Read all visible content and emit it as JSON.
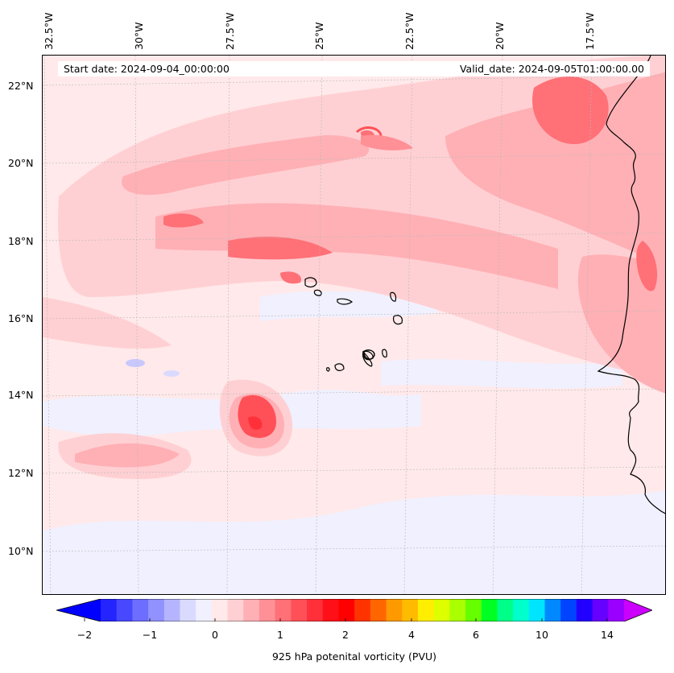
{
  "map": {
    "start_date": "Start date: 2024-09-04_00:00:00",
    "valid_date": "Valid_date: 2024-09-05T01:00:00.00",
    "lon_labels": [
      "32.5°W",
      "30°W",
      "27.5°W",
      "25°W",
      "22.5°W",
      "20°W",
      "17.5°W"
    ],
    "lat_labels": [
      "22°N",
      "20°N",
      "18°N",
      "16°N",
      "14°N",
      "12°N",
      "10°N"
    ],
    "gridlines": true,
    "features": [
      "Cabo Verde islands",
      "West African coastline"
    ]
  },
  "colorbar": {
    "label": "925 hPa potenital vorticity (PVU)",
    "ticks": [
      "−2",
      "−1",
      "0",
      "1",
      "2",
      "4",
      "6",
      "10",
      "14"
    ],
    "colors": [
      "#0000ff",
      "#2424ff",
      "#4848ff",
      "#6d6dff",
      "#9191ff",
      "#b5b5ff",
      "#dadaff",
      "#f0f0ff",
      "#ffe9ea",
      "#ffd0d3",
      "#ffb0b5",
      "#ff9096",
      "#ff7077",
      "#ff5058",
      "#ff3039",
      "#ff1018",
      "#ff0000",
      "#ff3300",
      "#ff6600",
      "#ff9900",
      "#ffbb00",
      "#ffee00",
      "#ddff00",
      "#aaff00",
      "#66ff00",
      "#00ff22",
      "#00ff88",
      "#00ffcc",
      "#00e5ff",
      "#0088ff",
      "#0044ff",
      "#2200ff",
      "#6600ff",
      "#9900ff",
      "#cc00ff"
    ]
  }
}
